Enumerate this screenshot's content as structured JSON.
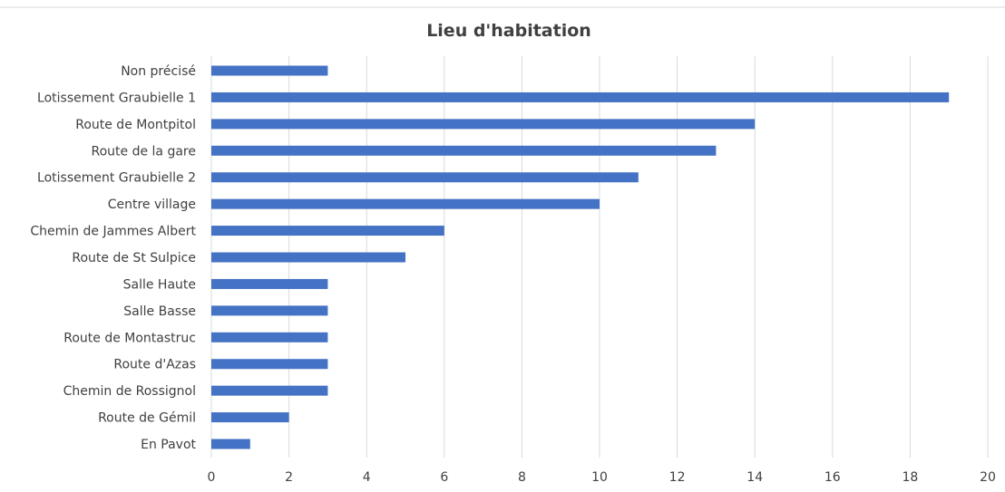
{
  "chart_data": {
    "type": "bar",
    "orientation": "horizontal",
    "title": "Lieu d'habitation",
    "xlabel": "",
    "ylabel": "",
    "categories": [
      "Non précisé",
      "Lotissement Graubielle 1",
      "Route de Montpitol",
      "Route de la gare",
      "Lotissement Graubielle 2",
      "Centre village",
      "Chemin de Jammes Albert",
      "Route de St Sulpice",
      "Salle Haute",
      "Salle Basse",
      "Route de Montastruc",
      "Route d'Azas",
      "Chemin de Rossignol",
      "Route de Gémil",
      "En Pavot"
    ],
    "values": [
      3,
      19,
      14,
      13,
      11,
      10,
      6,
      5,
      3,
      3,
      3,
      3,
      3,
      2,
      1
    ],
    "xlim": [
      0,
      20
    ],
    "xticks": [
      0,
      2,
      4,
      6,
      8,
      10,
      12,
      14,
      16,
      18,
      20
    ],
    "xtick_labels": [
      "0",
      "2",
      "4",
      "6",
      "8",
      "10",
      "12",
      "14",
      "16",
      "18",
      "20"
    ],
    "grid": "vertical",
    "legend": "none",
    "bar_color": "#4472c4",
    "grid_color": "#d9d9d9",
    "text_color": "#404040"
  }
}
